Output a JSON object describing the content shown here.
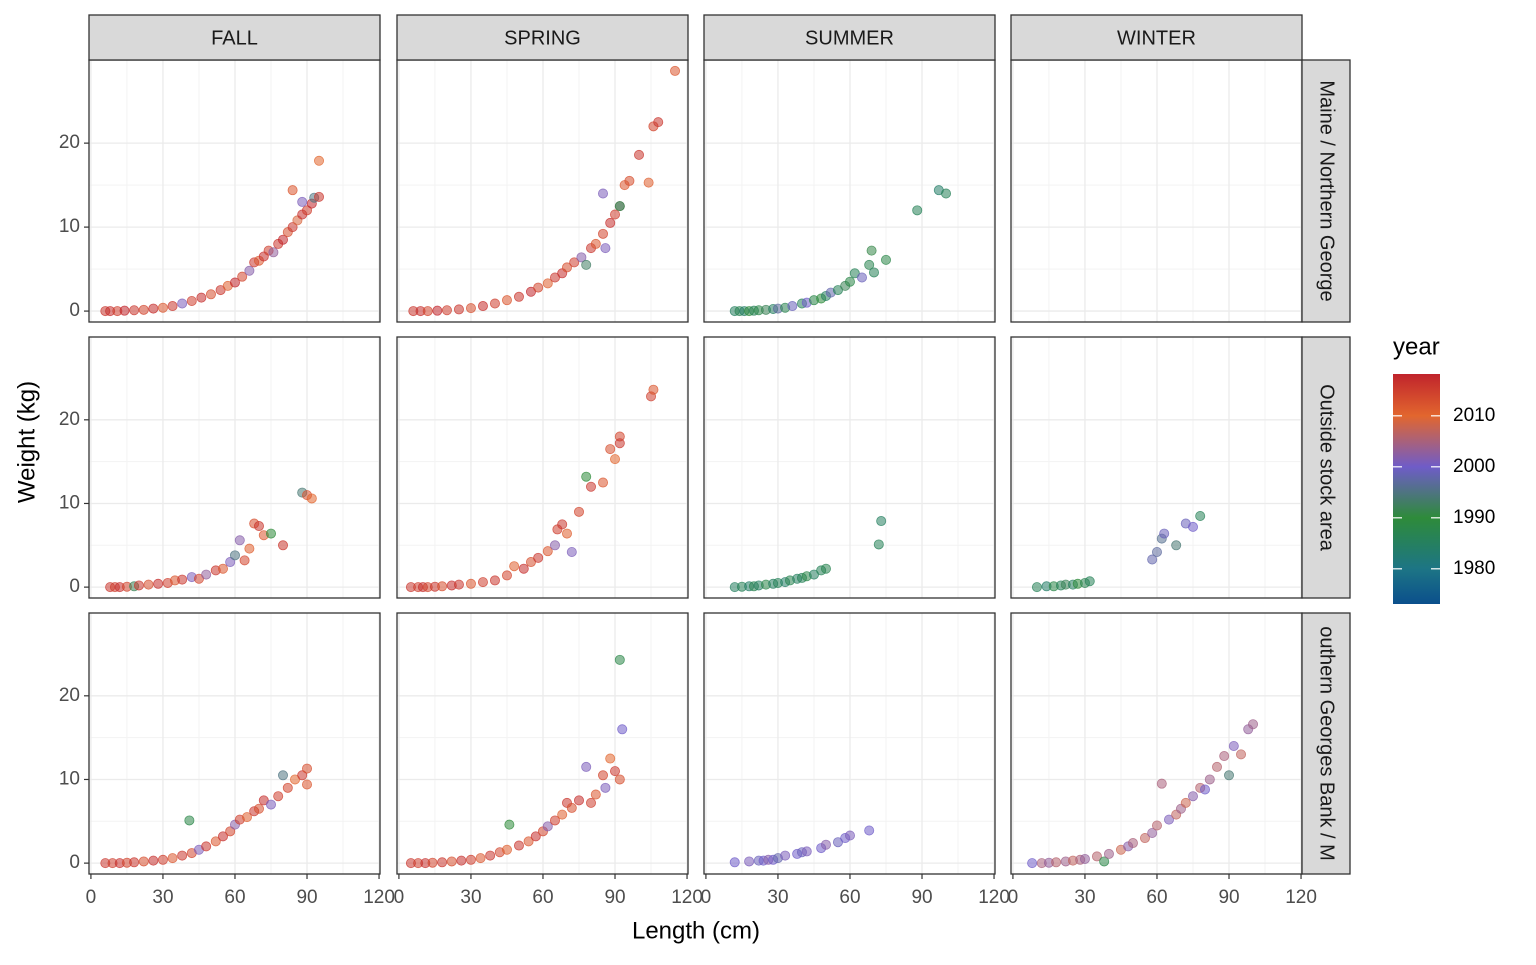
{
  "chart_data": {
    "type": "scatter",
    "xlabel": "Length (cm)",
    "ylabel": "Weight (kg)",
    "col_facets": [
      "FALL",
      "SPRING",
      "SUMMER",
      "WINTER"
    ],
    "row_facets": [
      "Maine / Northern George",
      "Outside stock area",
      "outhern Georges Bank / M"
    ],
    "xlim": [
      -0.8,
      120.4
    ],
    "xticks": [
      0,
      30,
      60,
      90,
      120
    ],
    "ylim": [
      -1.3,
      29.9
    ],
    "yticks": [
      0,
      10,
      20
    ],
    "grid": true,
    "legend": {
      "title": "year",
      "lim": [
        1973.1,
        2018.2
      ],
      "ticks": [
        1980,
        1990,
        2000,
        2010
      ],
      "colorscale": [
        {
          "value": 1973.1,
          "color": "#0b4f8c"
        },
        {
          "value": 1980,
          "color": "#1d7585"
        },
        {
          "value": 1990,
          "color": "#2e8b3a"
        },
        {
          "value": 2000,
          "color": "#6f5cc8"
        },
        {
          "value": 2010,
          "color": "#e2662e"
        },
        {
          "value": 2018.2,
          "color": "#c0242c"
        }
      ]
    },
    "panels": [
      {
        "x": [
          6,
          8,
          11,
          14,
          18,
          22,
          26,
          30,
          34,
          38,
          42,
          46,
          50,
          54,
          57,
          60,
          63,
          66,
          68,
          70,
          72,
          74,
          76,
          78,
          80,
          82,
          84,
          86,
          88,
          90,
          92,
          93,
          95,
          84,
          88,
          95
        ],
        "y": [
          0,
          0,
          0,
          0.05,
          0.1,
          0.15,
          0.3,
          0.4,
          0.6,
          0.9,
          1.2,
          1.6,
          2.0,
          2.5,
          3.0,
          3.4,
          4.1,
          4.8,
          5.8,
          6.0,
          6.5,
          7.2,
          7.0,
          8.0,
          8.5,
          9.4,
          10.0,
          10.8,
          11.5,
          12.0,
          12.8,
          13.5,
          13.6,
          14.4,
          13.0,
          17.9
        ],
        "year": [
          2016,
          2017,
          2015,
          2018,
          2016,
          2014,
          2017,
          2012,
          2016,
          2001,
          2015,
          2017,
          2013,
          2016,
          2011,
          2018,
          2014,
          2002,
          2016,
          2012,
          2017,
          2015,
          2003,
          2016,
          2018,
          2013,
          2016,
          2009,
          2017,
          2015,
          2018,
          1995,
          2016,
          2012,
          2001,
          2010
        ]
      },
      {
        "x": [
          6,
          9,
          12,
          16,
          20,
          25,
          30,
          35,
          40,
          45,
          50,
          55,
          58,
          62,
          65,
          68,
          70,
          73,
          76,
          78,
          80,
          82,
          85,
          86,
          88,
          90,
          92,
          94,
          96,
          100,
          104,
          106,
          108,
          115,
          92,
          85
        ],
        "y": [
          0,
          0,
          0,
          0.05,
          0.1,
          0.2,
          0.35,
          0.6,
          0.9,
          1.3,
          1.7,
          2.3,
          2.8,
          3.3,
          4.0,
          4.5,
          5.2,
          5.8,
          6.4,
          5.5,
          7.5,
          8.0,
          9.2,
          7.5,
          10.5,
          11.5,
          12.5,
          15.0,
          15.5,
          18.6,
          15.3,
          22.0,
          22.5,
          28.6,
          12.5,
          14.0
        ],
        "year": [
          2016,
          2017,
          2014,
          2018,
          2015,
          2016,
          2013,
          2017,
          2015,
          2012,
          2016,
          2018,
          2014,
          2011,
          2016,
          2017,
          2013,
          2015,
          2002,
          1993,
          2016,
          2012,
          2014,
          2001,
          2017,
          2015,
          2003,
          2012,
          2013,
          2016,
          2011,
          2014,
          2016,
          2012,
          1990,
          2001
        ]
      },
      {
        "x": [
          12,
          14,
          16,
          18,
          20,
          22,
          25,
          28,
          30,
          33,
          36,
          40,
          42,
          45,
          48,
          50,
          52,
          55,
          58,
          60,
          62,
          65,
          68,
          69,
          70,
          75,
          88,
          97,
          100
        ],
        "y": [
          0,
          0,
          0,
          0,
          0.05,
          0.1,
          0.15,
          0.25,
          0.3,
          0.4,
          0.6,
          0.9,
          1.0,
          1.3,
          1.5,
          1.8,
          2.2,
          2.5,
          3.0,
          3.5,
          4.5,
          4.0,
          5.5,
          7.2,
          4.6,
          6.1,
          12.0,
          14.4,
          14.0
        ],
        "year": [
          1985,
          1987,
          1984,
          1990,
          1986,
          1988,
          1992,
          1985,
          1997,
          1987,
          1999,
          1986,
          2000,
          1988,
          1990,
          1985,
          1998,
          1986,
          1992,
          1988,
          1986,
          1999,
          1987,
          1991,
          1986,
          1988,
          1986,
          1984,
          1986
        ]
      },
      {
        "x": [],
        "y": [],
        "year": []
      },
      {
        "x": [
          8,
          10,
          12,
          15,
          18,
          20,
          24,
          28,
          32,
          35,
          38,
          42,
          45,
          48,
          52,
          55,
          58,
          60,
          62,
          64,
          66,
          68,
          70,
          72,
          75,
          80,
          88,
          90,
          92
        ],
        "y": [
          0,
          0,
          0,
          0.05,
          0.1,
          0.2,
          0.3,
          0.4,
          0.5,
          0.8,
          0.9,
          1.2,
          1.0,
          1.5,
          2.0,
          2.2,
          3.0,
          3.8,
          5.6,
          3.2,
          4.6,
          7.6,
          7.3,
          6.2,
          6.4,
          5.0,
          11.3,
          11.0,
          10.6
        ],
        "year": [
          2016,
          2015,
          2017,
          2014,
          1992,
          2016,
          2013,
          2017,
          2015,
          2012,
          2016,
          2001,
          2014,
          2003,
          2016,
          2012,
          2001,
          1995,
          2002,
          2014,
          2011,
          2013,
          2016,
          2012,
          1990,
          2016,
          1994,
          2013,
          2010
        ]
      },
      {
        "x": [
          5,
          8,
          10,
          12,
          15,
          18,
          22,
          25,
          30,
          35,
          40,
          45,
          48,
          52,
          55,
          58,
          62,
          65,
          66,
          68,
          70,
          72,
          75,
          78,
          80,
          85,
          88,
          90,
          92,
          92,
          105,
          106
        ],
        "y": [
          0,
          0,
          0,
          0,
          0.05,
          0.1,
          0.2,
          0.3,
          0.4,
          0.6,
          0.8,
          1.4,
          2.5,
          2.2,
          3.0,
          3.5,
          4.3,
          5.0,
          6.9,
          7.5,
          6.4,
          4.2,
          9.0,
          13.2,
          12.0,
          12.5,
          16.5,
          15.3,
          18.0,
          17.2,
          22.8,
          23.6
        ],
        "year": [
          2016,
          2015,
          2017,
          2014,
          2016,
          2013,
          2017,
          2016,
          2012,
          2015,
          2016,
          2014,
          2011,
          2017,
          2013,
          2016,
          2012,
          2002,
          2015,
          2016,
          2011,
          2001,
          2014,
          1990,
          2016,
          2012,
          2013,
          2010,
          2014,
          2016,
          2015,
          2012
        ]
      },
      {
        "x": [
          12,
          15,
          18,
          20,
          22,
          25,
          28,
          30,
          33,
          35,
          38,
          40,
          42,
          45,
          48,
          50,
          72,
          73
        ],
        "y": [
          0,
          0.05,
          0.1,
          0.1,
          0.2,
          0.3,
          0.4,
          0.5,
          0.6,
          0.8,
          1.0,
          1.1,
          1.3,
          1.5,
          2.0,
          2.2,
          5.1,
          7.9
        ],
        "year": [
          1985,
          1986,
          1984,
          1987,
          1985,
          1988,
          1985,
          1986,
          1984,
          1987,
          1985,
          1986,
          1988,
          1985,
          1986,
          1987,
          1986,
          1985
        ]
      },
      {
        "x": [
          10,
          14,
          17,
          20,
          22,
          25,
          27,
          30,
          32,
          58,
          60,
          62,
          63,
          68,
          72,
          75,
          78
        ],
        "y": [
          0,
          0.1,
          0.1,
          0.2,
          0.3,
          0.3,
          0.4,
          0.5,
          0.7,
          3.3,
          4.2,
          5.8,
          6.4,
          5.0,
          7.6,
          7.2,
          8.5
        ],
        "year": [
          1986,
          1984,
          1988,
          1986,
          1992,
          1985,
          1990,
          1987,
          1986,
          1998,
          1997,
          1996,
          1999,
          1994,
          1999,
          2000,
          1986
        ]
      },
      {
        "x": [
          6,
          9,
          12,
          15,
          18,
          22,
          26,
          30,
          34,
          38,
          41,
          42,
          45,
          48,
          52,
          55,
          58,
          60,
          62,
          65,
          68,
          70,
          72,
          75,
          78,
          80,
          82,
          85,
          88,
          90,
          90
        ],
        "y": [
          0,
          0,
          0,
          0.05,
          0.1,
          0.2,
          0.3,
          0.4,
          0.6,
          0.9,
          5.1,
          1.2,
          1.6,
          2.0,
          2.6,
          3.2,
          3.8,
          4.6,
          5.2,
          5.5,
          6.2,
          6.5,
          7.5,
          7.0,
          8.0,
          10.5,
          9.0,
          10.0,
          10.5,
          11.3,
          9.4
        ],
        "year": [
          2016,
          2015,
          2017,
          2014,
          2016,
          2013,
          2017,
          2015,
          2012,
          2016,
          1988,
          2014,
          2001,
          2016,
          2012,
          2017,
          2014,
          2002,
          2015,
          2011,
          2016,
          2013,
          2017,
          2001,
          2015,
          1995,
          2014,
          2010,
          2016,
          2013,
          2012
        ]
      },
      {
        "x": [
          5,
          8,
          11,
          14,
          18,
          22,
          26,
          30,
          34,
          38,
          42,
          45,
          46,
          50,
          54,
          57,
          60,
          62,
          65,
          68,
          70,
          72,
          75,
          78,
          80,
          82,
          85,
          86,
          88,
          90,
          92,
          92,
          93
        ],
        "y": [
          0,
          0,
          0,
          0.05,
          0.1,
          0.2,
          0.3,
          0.4,
          0.6,
          0.9,
          1.3,
          1.6,
          4.6,
          2.1,
          2.6,
          3.2,
          3.8,
          4.4,
          5.1,
          5.8,
          7.2,
          6.6,
          7.5,
          11.5,
          7.2,
          8.2,
          10.5,
          9.0,
          12.5,
          11.0,
          10.0,
          24.3,
          16.0
        ],
        "year": [
          2016,
          2015,
          2017,
          2014,
          2016,
          2013,
          2017,
          2015,
          2012,
          2016,
          2014,
          2011,
          1990,
          2016,
          2012,
          2017,
          2014,
          2002,
          2015,
          2011,
          2016,
          2013,
          2017,
          2001,
          2015,
          2012,
          2014,
          2001,
          2010,
          2016,
          2013,
          1988,
          2000
        ]
      },
      {
        "x": [
          12,
          18,
          22,
          24,
          26,
          28,
          30,
          33,
          38,
          40,
          42,
          48,
          50,
          55,
          58,
          60,
          68
        ],
        "y": [
          0.1,
          0.2,
          0.3,
          0.3,
          0.4,
          0.4,
          0.6,
          0.9,
          1.1,
          1.3,
          1.4,
          1.8,
          2.2,
          2.5,
          3.0,
          3.3,
          3.9
        ],
        "year": [
          2000,
          2001,
          1999,
          2000,
          2002,
          2000,
          1998,
          2001,
          2000,
          1999,
          2001,
          2000,
          2002,
          1999,
          2000,
          2001,
          2000
        ]
      },
      {
        "x": [
          8,
          12,
          15,
          18,
          22,
          25,
          28,
          30,
          35,
          38,
          40,
          45,
          48,
          50,
          55,
          58,
          60,
          62,
          65,
          68,
          70,
          72,
          75,
          78,
          80,
          82,
          85,
          88,
          90,
          92,
          95,
          98,
          100
        ],
        "y": [
          0,
          0,
          0.05,
          0.1,
          0.2,
          0.3,
          0.4,
          0.5,
          0.8,
          0.2,
          1.1,
          1.6,
          2.0,
          2.4,
          3.0,
          3.6,
          4.5,
          9.5,
          5.2,
          5.8,
          6.5,
          7.2,
          8.0,
          9.0,
          8.8,
          10.0,
          11.5,
          12.8,
          10.5,
          14.0,
          13.0,
          16.0,
          16.6
        ],
        "year": [
          2000,
          2005,
          2003,
          2006,
          2004,
          2007,
          2005,
          2003,
          2006,
          1988,
          2004,
          2008,
          2002,
          2005,
          2007,
          2003,
          2006,
          2005,
          2001,
          2007,
          2004,
          2008,
          2002,
          2006,
          2000,
          2004,
          2006,
          2005,
          1994,
          2001,
          2007,
          2003,
          2004
        ]
      }
    ]
  }
}
